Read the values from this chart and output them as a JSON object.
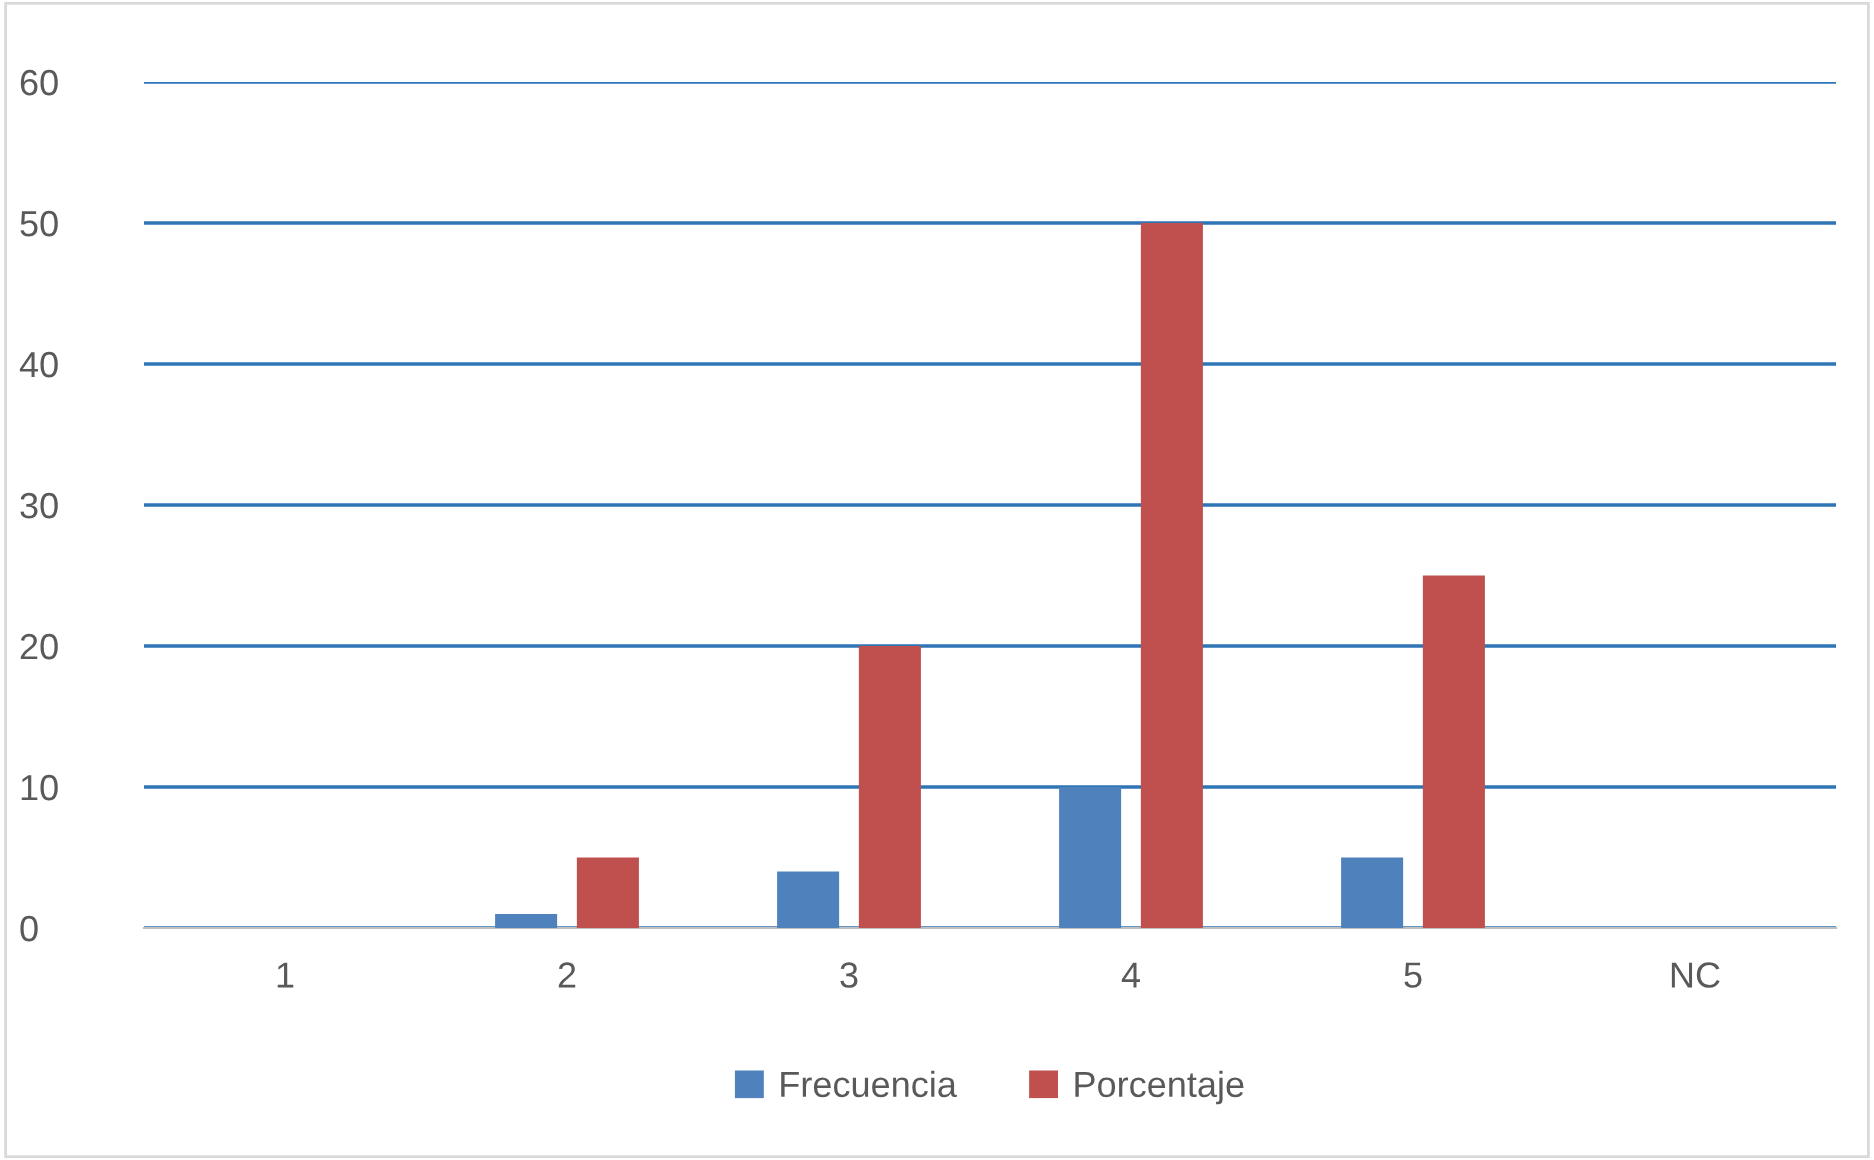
{
  "chart_data": {
    "type": "bar",
    "categories": [
      "1",
      "2",
      "3",
      "4",
      "5",
      "NC"
    ],
    "series": [
      {
        "name": "Frecuencia",
        "color": "#4f81bd",
        "values": [
          0,
          1,
          4,
          10,
          5,
          0
        ]
      },
      {
        "name": "Porcentaje",
        "color": "#c0504d",
        "values": [
          0,
          5,
          20,
          50,
          25,
          0
        ]
      }
    ],
    "ylim": [
      0,
      60
    ],
    "yticks": [
      0,
      10,
      20,
      30,
      40,
      50,
      60
    ],
    "grid": "y",
    "legend": "bottom"
  }
}
